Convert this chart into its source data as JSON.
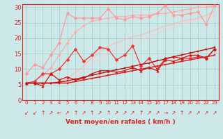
{
  "title": "",
  "xlabel": "Vent moyen/en rafales ( km/h )",
  "bg_color": "#cce8e8",
  "grid_color": "#aacece",
  "xlim": [
    -0.5,
    23.5
  ],
  "ylim": [
    0,
    31
  ],
  "xticks": [
    0,
    1,
    2,
    3,
    4,
    5,
    6,
    7,
    8,
    9,
    10,
    11,
    12,
    13,
    14,
    15,
    16,
    17,
    18,
    19,
    20,
    21,
    22,
    23
  ],
  "yticks": [
    0,
    5,
    10,
    15,
    20,
    25,
    30
  ],
  "lines": [
    {
      "x": [
        0,
        1,
        2,
        3,
        4,
        5,
        6,
        7,
        8,
        9,
        10,
        11,
        12,
        13,
        14,
        15,
        16,
        17,
        18,
        19,
        20,
        21,
        22,
        23
      ],
      "y": [
        8.5,
        11.5,
        10.5,
        14.5,
        18.5,
        28.0,
        26.5,
        26.5,
        26.5,
        26.5,
        29.5,
        26.5,
        26.0,
        27.0,
        26.5,
        27.0,
        28.0,
        30.5,
        27.5,
        27.5,
        28.0,
        28.5,
        24.5,
        30.5
      ],
      "color": "#ff9999",
      "marker": "D",
      "markersize": 2.5,
      "linewidth": 0.9,
      "zorder": 3
    },
    {
      "x": [
        0,
        1,
        2,
        3,
        4,
        5,
        6,
        7,
        8,
        9,
        10,
        11,
        12,
        13,
        14,
        15,
        16,
        17,
        18,
        19,
        20,
        21,
        22,
        23
      ],
      "y": [
        5.5,
        6.0,
        8.0,
        10.5,
        14.5,
        18.5,
        22.0,
        24.0,
        25.5,
        26.0,
        26.5,
        27.0,
        27.0,
        27.5,
        27.5,
        27.5,
        28.0,
        28.0,
        28.5,
        29.0,
        29.5,
        30.0,
        30.0,
        30.5
      ],
      "color": "#ffaaaa",
      "marker": "D",
      "markersize": 2.0,
      "linewidth": 0.8,
      "zorder": 2
    },
    {
      "x": [
        0,
        1,
        2,
        3,
        4,
        5,
        6,
        7,
        8,
        9,
        10,
        11,
        12,
        13,
        14,
        15,
        16,
        17,
        18,
        19,
        20,
        21,
        22,
        23
      ],
      "y": [
        5.5,
        5.5,
        5.5,
        5.5,
        6.0,
        7.0,
        9.0,
        11.0,
        13.5,
        15.5,
        17.5,
        18.5,
        19.5,
        20.5,
        21.0,
        22.0,
        23.0,
        24.0,
        24.5,
        25.5,
        26.0,
        26.5,
        27.5,
        28.5
      ],
      "color": "#ffbbbb",
      "marker": null,
      "markersize": 0,
      "linewidth": 0.9,
      "zorder": 2
    },
    {
      "x": [
        0,
        1,
        2,
        3,
        4,
        5,
        6,
        7,
        8,
        9,
        10,
        11,
        12,
        13,
        14,
        15,
        16,
        17,
        18,
        19,
        20,
        21,
        22,
        23
      ],
      "y": [
        5.5,
        5.5,
        5.5,
        5.5,
        5.5,
        6.0,
        7.5,
        9.5,
        11.5,
        13.5,
        15.5,
        16.5,
        17.5,
        18.5,
        19.5,
        20.5,
        21.5,
        22.5,
        23.5,
        24.5,
        25.5,
        26.0,
        26.5,
        27.5
      ],
      "color": "#ffcccc",
      "marker": null,
      "markersize": 0,
      "linewidth": 0.8,
      "zorder": 2
    },
    {
      "x": [
        0,
        1,
        2,
        3,
        4,
        5,
        6,
        7,
        8,
        9,
        10,
        11,
        12,
        13,
        14,
        15,
        16,
        17,
        18,
        19,
        20,
        21,
        22,
        23
      ],
      "y": [
        5.5,
        6.0,
        8.5,
        8.5,
        10.0,
        13.0,
        16.5,
        12.5,
        14.5,
        17.0,
        16.5,
        13.0,
        14.5,
        17.5,
        11.0,
        13.5,
        10.0,
        13.5,
        14.0,
        13.5,
        13.5,
        14.0,
        13.5,
        16.5
      ],
      "color": "#ee3333",
      "marker": "D",
      "markersize": 2.5,
      "linewidth": 0.9,
      "zorder": 4
    },
    {
      "x": [
        0,
        1,
        2,
        3,
        4,
        5,
        6,
        7,
        8,
        9,
        10,
        11,
        12,
        13,
        14,
        15,
        16,
        17,
        18,
        19,
        20,
        21,
        22,
        23
      ],
      "y": [
        5.5,
        5.5,
        4.5,
        8.5,
        6.5,
        7.5,
        6.5,
        7.0,
        8.5,
        9.5,
        9.5,
        9.0,
        9.5,
        10.5,
        9.5,
        10.5,
        9.5,
        13.0,
        12.5,
        13.5,
        14.5,
        14.5,
        13.5,
        16.5
      ],
      "color": "#cc1111",
      "marker": "^",
      "markersize": 2.5,
      "linewidth": 0.9,
      "zorder": 4
    },
    {
      "x": [
        0,
        1,
        2,
        3,
        4,
        5,
        6,
        7,
        8,
        9,
        10,
        11,
        12,
        13,
        14,
        15,
        16,
        17,
        18,
        19,
        20,
        21,
        22,
        23
      ],
      "y": [
        5.5,
        5.5,
        5.5,
        5.5,
        5.5,
        5.5,
        6.0,
        6.5,
        7.0,
        7.5,
        8.0,
        8.5,
        9.0,
        9.5,
        10.0,
        10.5,
        11.0,
        11.5,
        12.0,
        12.5,
        13.0,
        13.5,
        14.0,
        14.5
      ],
      "color": "#dd2222",
      "marker": "s",
      "markersize": 1.5,
      "linewidth": 1.1,
      "zorder": 5
    },
    {
      "x": [
        0,
        1,
        2,
        3,
        4,
        5,
        6,
        7,
        8,
        9,
        10,
        11,
        12,
        13,
        14,
        15,
        16,
        17,
        18,
        19,
        20,
        21,
        22,
        23
      ],
      "y": [
        5.5,
        5.5,
        5.5,
        5.5,
        5.8,
        6.2,
        6.8,
        7.4,
        8.0,
        8.6,
        9.2,
        9.8,
        10.3,
        10.9,
        11.5,
        12.0,
        12.7,
        13.3,
        14.0,
        14.6,
        15.2,
        15.8,
        16.4,
        17.0
      ],
      "color": "#bb1111",
      "marker": "s",
      "markersize": 1.5,
      "linewidth": 1.0,
      "zorder": 5
    }
  ],
  "arrow_symbols": [
    "↙",
    "↙",
    "↑",
    "↗",
    "←",
    "↗",
    "↑",
    "↗",
    "↑",
    "↗",
    "↑",
    "↗",
    "↗",
    "↗",
    "↑",
    "↗",
    "↗",
    "→",
    "↗",
    "↑",
    "↗",
    "↗",
    "↗",
    "↗"
  ],
  "arrow_color": "#dd2222",
  "arrow_fontsize": 5.5,
  "tick_fontsize_x": 5,
  "tick_fontsize_y": 6,
  "xlabel_fontsize": 6.5,
  "tick_color": "#dd2222",
  "spine_color": "#dd2222"
}
